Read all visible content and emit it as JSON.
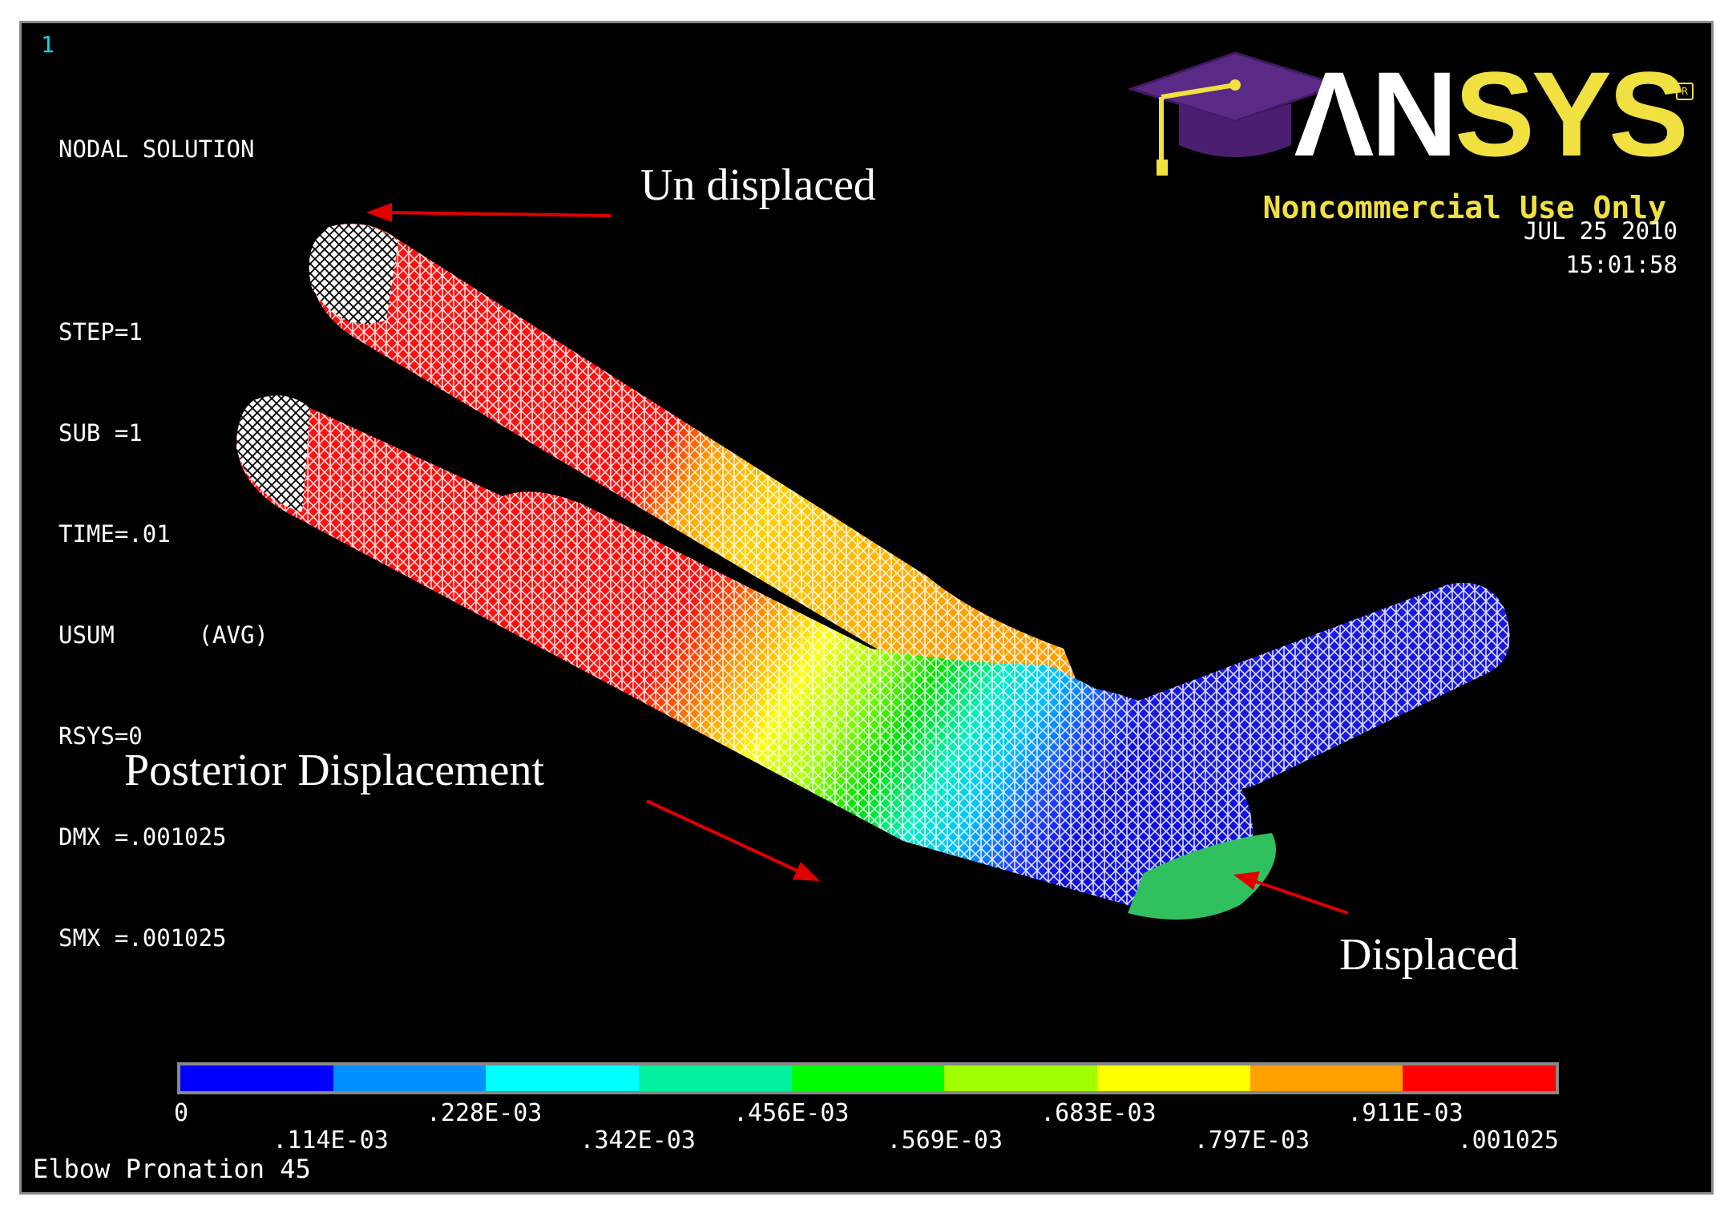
{
  "window": {
    "number": "1",
    "caption": "Elbow Pronation 45"
  },
  "solution_info": {
    "title": "NODAL SOLUTION",
    "lines": [
      "STEP=1",
      "SUB =1",
      "TIME=.01",
      "USUM      (AVG)",
      "RSYS=0",
      "DMX =.001025",
      "SMX =.001025"
    ]
  },
  "datetime": {
    "date": "JUL 25 2010",
    "time": "15:01:58"
  },
  "logo": {
    "name_part1": "ΛN",
    "name_part2": "SYS",
    "subtitle": "Noncommercial Use Only",
    "reg_mark": "R",
    "icon": "graduation-cap-icon"
  },
  "annotations": {
    "undisplaced": "Un displaced",
    "posterior": "Posterior Displacement",
    "displaced": "Displaced"
  },
  "legend": {
    "colors": [
      "#0000ff",
      "#0090ff",
      "#00ffff",
      "#00f0a0",
      "#00ff00",
      "#a0ff00",
      "#ffff00",
      "#ffa000",
      "#ff0000"
    ],
    "ticks_top": [
      "0",
      ".228E-03",
      ".456E-03",
      ".683E-03",
      ".911E-03"
    ],
    "ticks_bottom": [
      ".114E-03",
      ".342E-03",
      ".569E-03",
      ".797E-03",
      ".001025"
    ]
  }
}
